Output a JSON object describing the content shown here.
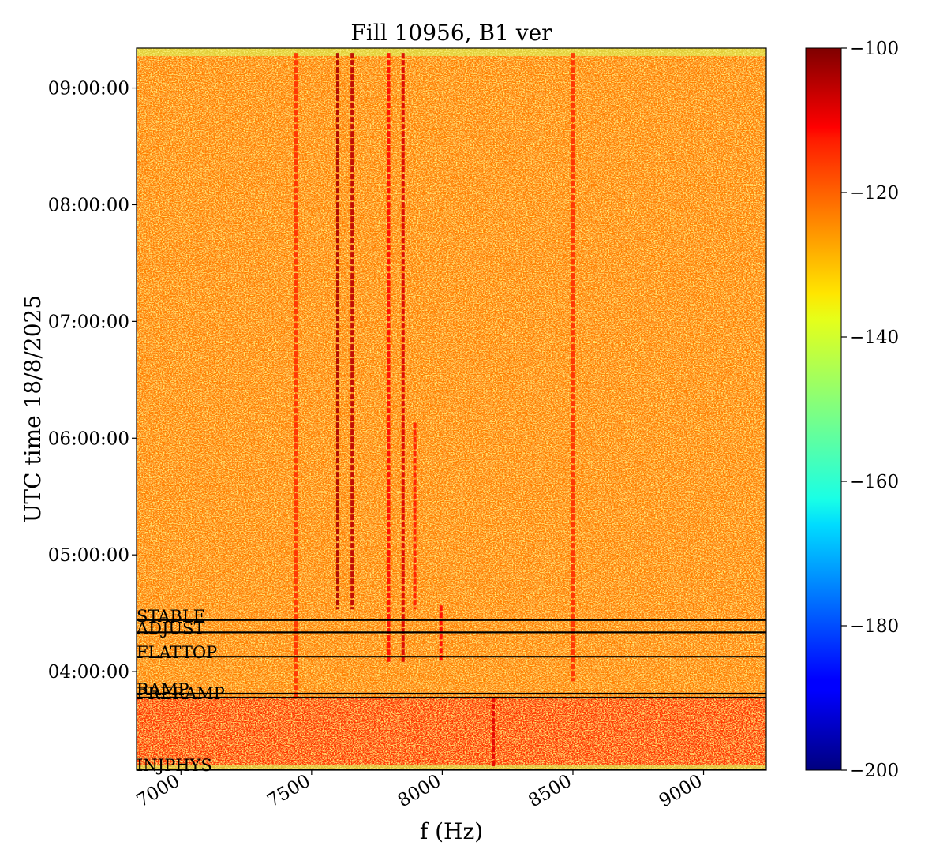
{
  "chart_data": {
    "type": "heatmap",
    "title": "Fill 10956, B1 ver",
    "xlabel": "f (Hz)",
    "ylabel": "UTC time 18/8/2025",
    "xlim": [
      6830,
      9240
    ],
    "ylim": [
      "03:09:20",
      "09:20:30"
    ],
    "x_ticks": [
      7000,
      7500,
      8000,
      8500,
      9000
    ],
    "y_ticks": [
      "04:00:00",
      "05:00:00",
      "06:00:00",
      "07:00:00",
      "08:00:00",
      "09:00:00"
    ],
    "colorbar": {
      "colormap": "jet",
      "range": [
        -200,
        -100
      ],
      "ticks": [
        "−200",
        "−180",
        "−160",
        "−140",
        "−120",
        "−100"
      ]
    },
    "background_level": -125,
    "lower_band_level": -118,
    "beam_modes": [
      {
        "label": "STABLE",
        "time": "04:26:30"
      },
      {
        "label": "ADJUST",
        "time": "04:20:10"
      },
      {
        "label": "FLATTOP",
        "time": "04:07:40"
      },
      {
        "label": "RAMP",
        "time": "03:48:40"
      },
      {
        "label": "PRERAMP",
        "time": "03:46:40"
      },
      {
        "label": "INJPHYS",
        "time": "03:09:40"
      }
    ],
    "spectral_lines": [
      {
        "f": 7440,
        "level": -117,
        "from": "03:46:00",
        "to": "09:18:00"
      },
      {
        "f": 7600,
        "level": -104,
        "from": "04:32:00",
        "to": "09:18:00"
      },
      {
        "f": 7655,
        "level": -106,
        "from": "04:32:00",
        "to": "09:18:00"
      },
      {
        "f": 7795,
        "level": -113,
        "from": "04:05:00",
        "to": "09:18:00"
      },
      {
        "f": 7850,
        "level": -109,
        "from": "04:05:00",
        "to": "09:18:00"
      },
      {
        "f": 7895,
        "level": -115,
        "from": "04:32:00",
        "to": "06:08:00"
      },
      {
        "f": 7995,
        "level": -113,
        "from": "04:05:00",
        "to": "04:34:00"
      },
      {
        "f": 8195,
        "level": -110,
        "from": "03:11:00",
        "to": "03:47:00"
      },
      {
        "f": 8500,
        "level": -117,
        "from": "03:55:00",
        "to": "09:18:00"
      }
    ]
  }
}
